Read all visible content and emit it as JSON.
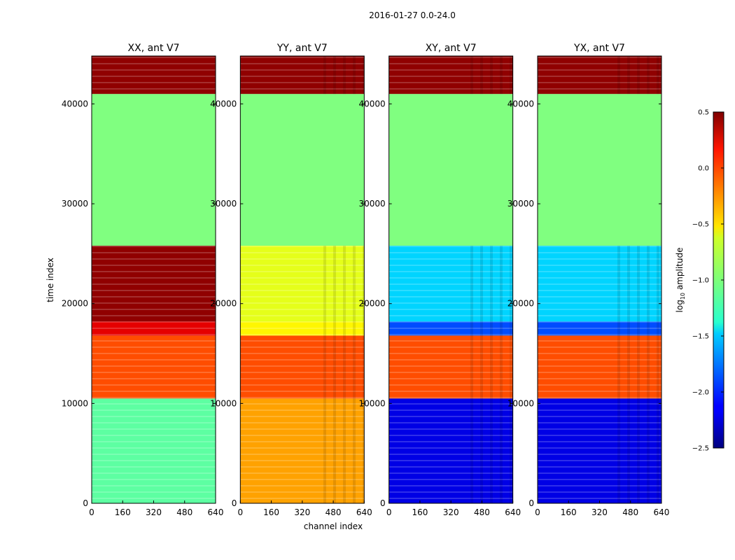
{
  "figure": {
    "suptitle": "2016-01-27 0.0-24.0",
    "ylabel": "time index",
    "xlabel": "channel index"
  },
  "chart_data": {
    "type": "heatmap",
    "panels": [
      {
        "title": "XX, ant V7",
        "pol": "XX"
      },
      {
        "title": "YY, ant V7",
        "pol": "YY"
      },
      {
        "title": "XY, ant V7",
        "pol": "XY"
      },
      {
        "title": "YX, ant V7",
        "pol": "YX"
      }
    ],
    "x": {
      "label": "channel index",
      "range": [
        0,
        640
      ],
      "ticks": [
        0,
        160,
        320,
        480,
        640
      ],
      "tick_labels": [
        "0",
        "160",
        "320",
        "480",
        "640"
      ]
    },
    "y": {
      "label": "time index",
      "range": [
        0,
        44800
      ],
      "ticks": [
        0,
        10000,
        20000,
        30000,
        40000
      ],
      "tick_labels": [
        "0",
        "10000",
        "20000",
        "30000",
        "40000"
      ]
    },
    "colorbar": {
      "label_main": "log",
      "label_sub": "10",
      "label_tail": " amplitude",
      "range": [
        -2.5,
        0.5
      ],
      "ticks": [
        0.5,
        0.0,
        -0.5,
        -1.0,
        -1.5,
        -2.0,
        -2.5
      ],
      "tick_labels": [
        "0.5",
        "0.0",
        "−0.5",
        "−1.0",
        "−1.5",
        "−2.0",
        "−2.5"
      ],
      "colormap": "jet"
    },
    "bands_log10_amplitude": [
      {
        "y0": 0,
        "y1": 10500,
        "XX": -1.1,
        "YY": -0.35,
        "XY": -2.2,
        "YX": -2.2
      },
      {
        "y0": 10500,
        "y1": 16800,
        "XX": -0.1,
        "YY": -0.1,
        "XY": -0.1,
        "YX": -0.1
      },
      {
        "y0": 16800,
        "y1": 18200,
        "XX": 0.2,
        "YY": -0.6,
        "XY": -1.9,
        "YX": -1.9
      },
      {
        "y0": 18200,
        "y1": 25800,
        "XX": 0.45,
        "YY": -0.7,
        "XY": -1.5,
        "YX": -1.5
      },
      {
        "y0": 25800,
        "y1": 41000,
        "XX": -1.0,
        "YY": -1.0,
        "XY": -1.0,
        "YX": -1.0
      },
      {
        "y0": 41000,
        "y1": 44800,
        "XX": 0.45,
        "YY": 0.45,
        "XY": 0.45,
        "YX": 0.45
      }
    ]
  }
}
